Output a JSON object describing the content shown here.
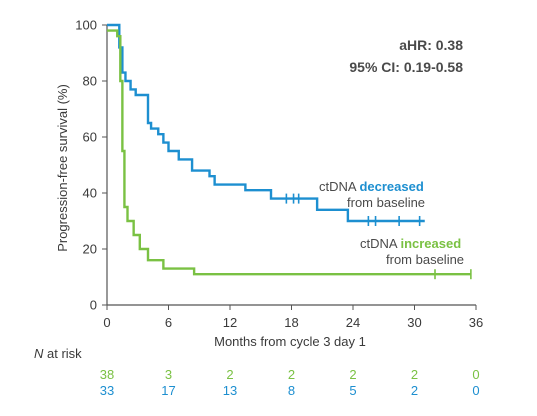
{
  "chart_data": {
    "type": "line",
    "xlabel": "Months from cycle 3 day 1",
    "ylabel": "Progression-free survival (%)",
    "xticks": [
      "0",
      "6",
      "12",
      "18",
      "24",
      "30",
      "36"
    ],
    "yticks": [
      "0",
      "20",
      "40",
      "60",
      "80",
      "100"
    ],
    "xlim": [
      0,
      36
    ],
    "ylim": [
      0,
      100
    ],
    "grid": false,
    "annotations": {
      "ahr": "aHR: 0.38",
      "ci": "95% CI: 0.19-0.58"
    },
    "series": [
      {
        "key": "decreased",
        "color": "#1d8fd0",
        "label_prefix": "ctDNA ",
        "label_emph": "decreased",
        "label_suffix": "from baseline",
        "x": [
          0,
          1.2,
          1.5,
          1.8,
          2.3,
          2.8,
          4,
          4.3,
          5,
          5.5,
          6,
          7,
          8.3,
          10,
          10.5,
          13.5,
          16,
          20.5,
          23.5,
          31
        ],
        "y": [
          100,
          92,
          83,
          80,
          77,
          75,
          65,
          63,
          61,
          58,
          55,
          52,
          48,
          46,
          43,
          41,
          38,
          34,
          30,
          30
        ],
        "censor_x": [
          17.5,
          18.2,
          18.7,
          25.5,
          26.2,
          28.5,
          30.5
        ]
      },
      {
        "key": "increased",
        "color": "#7ac143",
        "label_prefix": "ctDNA ",
        "label_emph": "increased",
        "label_suffix": "from baseline",
        "x": [
          0,
          1,
          1.3,
          1.5,
          1.7,
          2,
          2.6,
          3.2,
          4,
          5.5,
          8.5,
          35.5
        ],
        "y": [
          98,
          96,
          80,
          55,
          35,
          30,
          25,
          20,
          16,
          13,
          11,
          11
        ],
        "censor_x": [
          32,
          35.5
        ]
      }
    ],
    "at_risk": {
      "title": "at risk",
      "title_italic": "N",
      "times": [
        0,
        6,
        12,
        18,
        24,
        30,
        36
      ],
      "rows": [
        {
          "key": "increased",
          "color": "#7ac143",
          "values": [
            "38",
            "3",
            "2",
            "2",
            "2",
            "2",
            "0"
          ]
        },
        {
          "key": "decreased",
          "color": "#1d8fd0",
          "values": [
            "33",
            "17",
            "13",
            "8",
            "5",
            "2",
            "0"
          ]
        }
      ]
    }
  }
}
